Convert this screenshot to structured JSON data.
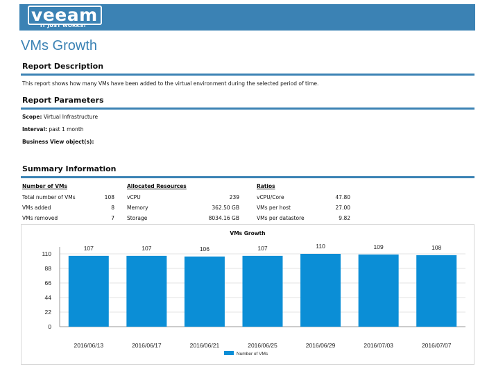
{
  "header": {
    "logo_text": "veeam",
    "logo_tagline": "IT JUST WORKS!™",
    "brand_color": "#3b82b4"
  },
  "page_title": "VMs Growth",
  "sections": {
    "description_heading": "Report Description",
    "description_text": "This report shows how many VMs have been added to the virtual environment during the selected period of time.",
    "parameters_heading": "Report Parameters",
    "summary_heading": "Summary Information"
  },
  "parameters": {
    "scope_label": "Scope:",
    "scope_value": "Virtual Infrastructure",
    "interval_label": "Interval:",
    "interval_value": "past 1 month",
    "business_view_label": "Business View object(s):"
  },
  "summary": {
    "number_of_vms": {
      "heading": "Number of VMs",
      "rows": [
        {
          "label": "Total number of VMs",
          "value": "108"
        },
        {
          "label": "VMs added",
          "value": "8"
        },
        {
          "label": "VMs removed",
          "value": "7"
        }
      ]
    },
    "allocated_resources": {
      "heading": "Allocated Resources",
      "rows": [
        {
          "label": "vCPU",
          "value": "239"
        },
        {
          "label": "Memory",
          "value": "362.50 GB"
        },
        {
          "label": "Storage",
          "value": "8034.16 GB"
        }
      ]
    },
    "ratios": {
      "heading": "Ratios",
      "rows": [
        {
          "label": "vCPU/Core",
          "value": "47.80"
        },
        {
          "label": "VMs per host",
          "value": "27.00"
        },
        {
          "label": "VMs per datastore",
          "value": "9.82"
        }
      ]
    }
  },
  "chart_data": {
    "type": "bar",
    "title": "VMs Growth",
    "categories": [
      "2016/06/13",
      "2016/06/17",
      "2016/06/21",
      "2016/06/25",
      "2016/06/29",
      "2016/07/03",
      "2016/07/07"
    ],
    "series": [
      {
        "name": "Number of VMs",
        "values": [
          107,
          107,
          106,
          107,
          110,
          109,
          108
        ],
        "color": "#0b8ed6"
      }
    ],
    "yticks": [
      0,
      22,
      44,
      66,
      88,
      110
    ],
    "ylim": [
      0,
      110
    ],
    "grid": true,
    "legend": "bottom-center",
    "data_labels": true
  }
}
